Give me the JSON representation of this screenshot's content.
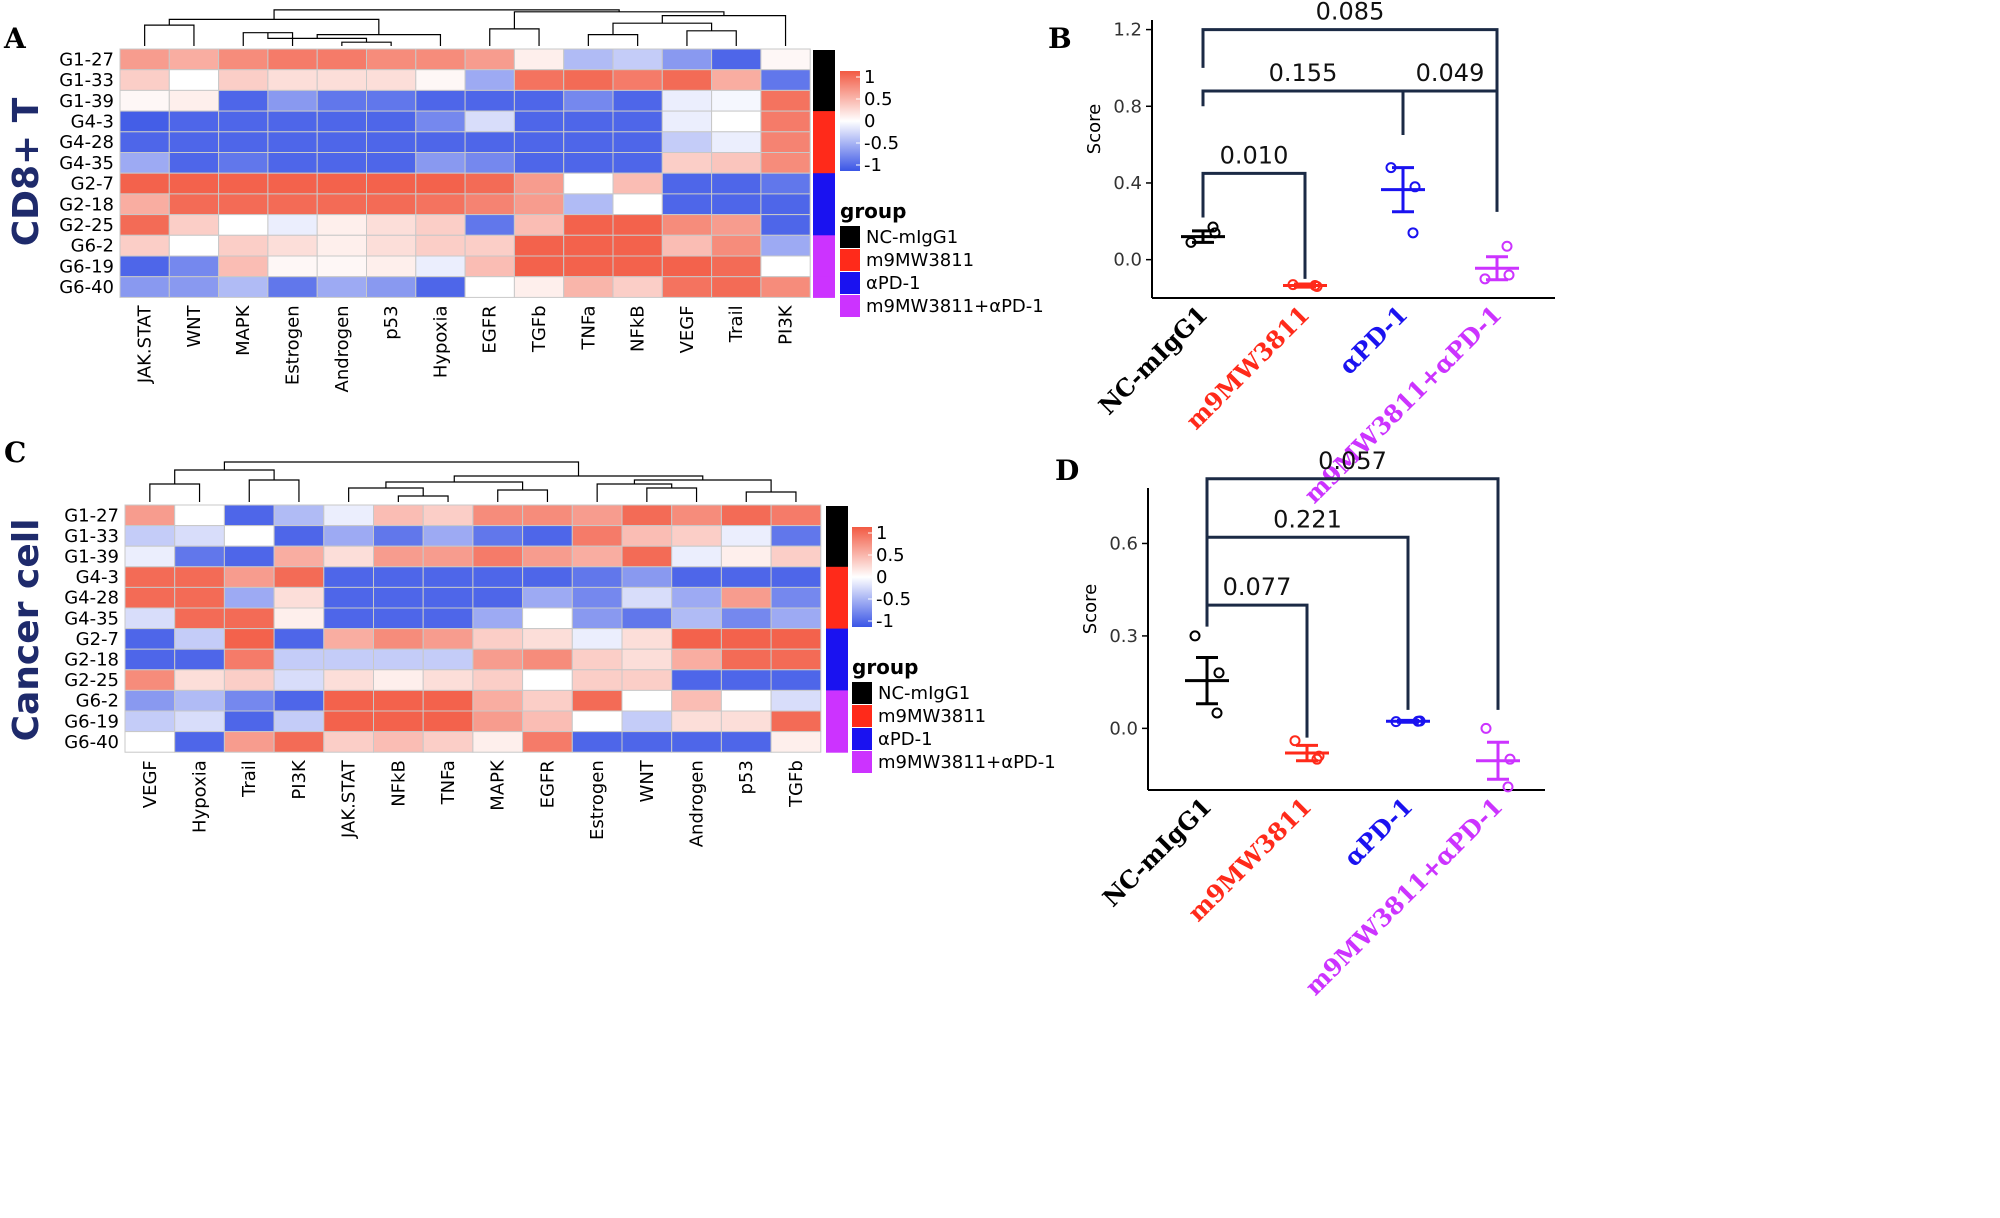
{
  "colors": {
    "low": "#3a55e6",
    "mid": "#ffffff",
    "high": "#f25a43",
    "group_colors": [
      "#000000",
      "#ff2a1a",
      "#1a12f0",
      "#cc33ff"
    ],
    "bracket": "#1b2a45",
    "cd8_title": "#1e2a6b"
  },
  "color_key": {
    "ticks": [
      "1",
      "0.5",
      "0",
      "-0.5",
      "-1"
    ],
    "title": "group",
    "groups": [
      "NC-mIgG1",
      "m9MW3811",
      "αPD-1",
      "m9MW3811+αPD-1"
    ]
  },
  "panels": [
    {
      "letter": "A",
      "side_title": "CD8+ T",
      "rows": [
        "G1-27",
        "G1-33",
        "G1-39",
        "G4-3",
        "G4-28",
        "G4-35",
        "G2-7",
        "G2-18",
        "G2-25",
        "G6-2",
        "G6-19",
        "G6-40"
      ],
      "row_groups": [
        0,
        0,
        0,
        1,
        1,
        1,
        2,
        2,
        2,
        3,
        3,
        3
      ],
      "cols": [
        "JAK.STAT",
        "WNT",
        "MAPK",
        "Estrogen",
        "Androgen",
        "p53",
        "Hypoxia",
        "EGFR",
        "TGFb",
        "TNFa",
        "NFkB",
        "VEGF",
        "Trail",
        "PI3K"
      ],
      "values": [
        [
          0.6,
          0.5,
          0.7,
          0.8,
          0.8,
          0.7,
          0.7,
          0.6,
          0.1,
          -0.4,
          -0.3,
          -0.6,
          -0.9,
          0.05
        ],
        [
          0.3,
          0.0,
          0.3,
          0.2,
          0.2,
          0.2,
          0.05,
          -0.5,
          0.85,
          0.9,
          0.8,
          0.9,
          0.5,
          -0.8
        ],
        [
          0.05,
          0.1,
          -0.9,
          -0.6,
          -0.8,
          -0.8,
          -0.9,
          -0.9,
          -0.9,
          -0.7,
          -0.9,
          -0.1,
          -0.05,
          0.85
        ],
        [
          -0.95,
          -0.9,
          -0.9,
          -0.9,
          -0.9,
          -0.9,
          -0.7,
          -0.2,
          -0.9,
          -0.9,
          -0.9,
          -0.1,
          0.0,
          0.8
        ],
        [
          -0.9,
          -0.9,
          -0.9,
          -0.9,
          -0.9,
          -0.9,
          -0.9,
          -0.9,
          -0.9,
          -0.9,
          -0.9,
          -0.3,
          -0.1,
          0.75
        ],
        [
          -0.5,
          -0.9,
          -0.8,
          -0.9,
          -0.9,
          -0.9,
          -0.6,
          -0.7,
          -0.9,
          -0.9,
          -0.9,
          0.3,
          0.35,
          0.7
        ],
        [
          0.95,
          0.95,
          0.95,
          0.95,
          0.95,
          0.95,
          0.95,
          0.9,
          0.6,
          0.0,
          0.4,
          -0.9,
          -0.9,
          -0.8
        ],
        [
          0.5,
          0.9,
          0.9,
          0.9,
          0.9,
          0.9,
          0.85,
          0.75,
          0.6,
          -0.4,
          0.0,
          -0.9,
          -0.9,
          -0.9
        ],
        [
          0.9,
          0.3,
          0.0,
          -0.1,
          0.1,
          0.2,
          0.3,
          -0.8,
          0.4,
          0.95,
          0.95,
          0.7,
          0.6,
          -0.9
        ],
        [
          0.3,
          0.0,
          0.3,
          0.2,
          0.1,
          0.2,
          0.3,
          0.3,
          0.95,
          0.95,
          0.95,
          0.4,
          0.7,
          -0.5
        ],
        [
          -0.9,
          -0.7,
          0.4,
          0.05,
          0.05,
          0.1,
          -0.1,
          0.4,
          0.95,
          0.95,
          0.95,
          0.95,
          0.9,
          0.0
        ],
        [
          -0.6,
          -0.6,
          -0.4,
          -0.8,
          -0.5,
          -0.6,
          -0.9,
          0.0,
          0.1,
          0.45,
          0.3,
          0.85,
          0.9,
          0.7
        ]
      ]
    },
    {
      "letter": "C",
      "side_title": "Cancer cell",
      "rows": [
        "G1-27",
        "G1-33",
        "G1-39",
        "G4-3",
        "G4-28",
        "G4-35",
        "G2-7",
        "G2-18",
        "G2-25",
        "G6-2",
        "G6-19",
        "G6-40"
      ],
      "row_groups": [
        0,
        0,
        0,
        1,
        1,
        1,
        2,
        2,
        2,
        3,
        3,
        3
      ],
      "cols": [
        "VEGF",
        "Hypoxia",
        "Trail",
        "PI3K",
        "JAK.STAT",
        "NFkB",
        "TNFa",
        "MAPK",
        "EGFR",
        "Estrogen",
        "WNT",
        "Androgen",
        "p53",
        "TGFb"
      ],
      "values": [
        [
          0.6,
          0.0,
          -0.9,
          -0.4,
          -0.1,
          0.4,
          0.3,
          0.7,
          0.7,
          0.6,
          0.9,
          0.7,
          0.9,
          0.8
        ],
        [
          -0.3,
          -0.2,
          0.0,
          -0.9,
          -0.5,
          -0.8,
          -0.5,
          -0.8,
          -0.9,
          0.8,
          0.4,
          0.3,
          -0.1,
          -0.8
        ],
        [
          -0.1,
          -0.8,
          -0.9,
          0.5,
          0.2,
          0.6,
          0.6,
          0.8,
          0.6,
          0.5,
          0.9,
          -0.1,
          0.1,
          0.3
        ],
        [
          0.9,
          0.9,
          0.6,
          0.9,
          -0.9,
          -0.9,
          -0.9,
          -0.9,
          -0.9,
          -0.8,
          -0.6,
          -0.9,
          -0.9,
          -0.9
        ],
        [
          0.9,
          0.9,
          -0.5,
          0.2,
          -0.9,
          -0.9,
          -0.9,
          -0.9,
          -0.5,
          -0.7,
          -0.2,
          -0.5,
          0.6,
          -0.7
        ],
        [
          -0.2,
          0.9,
          0.9,
          0.1,
          -0.9,
          -0.9,
          -0.9,
          -0.5,
          0.0,
          -0.6,
          -0.8,
          -0.4,
          -0.7,
          -0.5
        ],
        [
          -0.9,
          -0.3,
          0.95,
          -0.9,
          0.5,
          0.7,
          0.6,
          0.3,
          0.2,
          -0.1,
          0.2,
          0.95,
          0.95,
          0.95
        ],
        [
          -0.9,
          -0.9,
          0.8,
          -0.3,
          -0.3,
          -0.3,
          -0.3,
          0.6,
          0.7,
          0.3,
          0.2,
          0.5,
          0.9,
          0.9
        ],
        [
          0.7,
          0.2,
          0.3,
          -0.2,
          0.2,
          0.1,
          0.2,
          0.3,
          0.0,
          0.3,
          0.3,
          -0.9,
          -0.9,
          -0.9
        ],
        [
          -0.6,
          -0.4,
          -0.7,
          -0.9,
          0.95,
          0.95,
          0.95,
          0.5,
          0.3,
          0.9,
          0.0,
          0.4,
          0.0,
          -0.2
        ],
        [
          -0.3,
          -0.2,
          -0.9,
          -0.3,
          0.95,
          0.95,
          0.95,
          0.6,
          0.4,
          0.0,
          -0.3,
          0.2,
          0.2,
          0.9
        ],
        [
          0.0,
          -0.9,
          0.6,
          0.9,
          0.3,
          0.4,
          0.3,
          0.1,
          0.8,
          -0.9,
          -0.9,
          -0.9,
          -0.9,
          0.1
        ]
      ]
    }
  ],
  "scatter_panels": [
    {
      "letter": "B",
      "ylabel": "Score",
      "ylim": [
        -0.2,
        1.25
      ],
      "yticks": [
        "0.0",
        "0.4",
        "0.8",
        "1.2"
      ],
      "ytick_values": [
        0.0,
        0.4,
        0.8,
        1.2
      ],
      "groups": [
        "NC-mIgG1",
        "m9MW3811",
        "αPD-1",
        "m9MW3811+αPD-1"
      ],
      "means": [
        0.12,
        -0.135,
        0.365,
        -0.045
      ],
      "err": [
        0.03,
        0.008,
        0.115,
        0.06
      ],
      "points": [
        [
          0.09,
          0.14,
          0.17
        ],
        [
          -0.13,
          -0.14,
          -0.135
        ],
        [
          0.48,
          0.38,
          0.14
        ],
        [
          -0.1,
          -0.08,
          0.07
        ]
      ],
      "brackets": [
        {
          "from": 0,
          "to": 1,
          "y": 0.45,
          "drops": [
            0.22,
            -0.1
          ],
          "label": "0.010"
        },
        {
          "from": 0,
          "to": 2,
          "y": 0.88,
          "drops": [
            0.8,
            0.65
          ],
          "label": "0.155"
        },
        {
          "from": 2,
          "to": 3,
          "y": 0.88,
          "drops": [
            0.65,
            0.25
          ],
          "label": "0.049"
        },
        {
          "from": 0,
          "to": 3,
          "y": 1.2,
          "drops": [
            1.0,
            0.25
          ],
          "label": "0.085"
        }
      ]
    },
    {
      "letter": "D",
      "ylabel": "Score",
      "ylim": [
        -0.2,
        0.78
      ],
      "yticks": [
        "0.0",
        "0.3",
        "0.6"
      ],
      "ytick_values": [
        0.0,
        0.3,
        0.6
      ],
      "groups": [
        "NC-mIgG1",
        "m9MW3811",
        "αPD-1",
        "m9MW3811+αPD-1"
      ],
      "means": [
        0.155,
        -0.08,
        0.023,
        -0.105
      ],
      "err": [
        0.075,
        0.025,
        0.003,
        0.06
      ],
      "points": [
        [
          0.3,
          0.18,
          0.05
        ],
        [
          -0.04,
          -0.09,
          -0.1
        ],
        [
          0.022,
          0.024,
          0.023
        ],
        [
          0.0,
          -0.1,
          -0.19
        ]
      ],
      "brackets": [
        {
          "from": 0,
          "to": 1,
          "y": 0.4,
          "drops": [
            0.33,
            -0.03
          ],
          "label": "0.077"
        },
        {
          "from": 0,
          "to": 2,
          "y": 0.62,
          "drops": [
            0.34,
            0.06
          ],
          "label": "0.221"
        },
        {
          "from": 0,
          "to": 3,
          "y": 0.81,
          "drops": [
            0.34,
            0.06
          ],
          "label": "0.057"
        }
      ]
    }
  ]
}
